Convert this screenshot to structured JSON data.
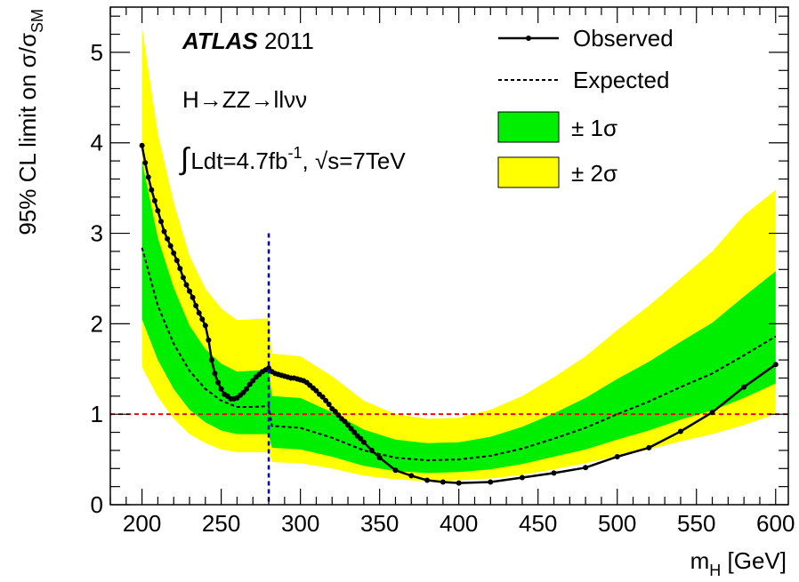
{
  "chart_data": {
    "type": "line",
    "xlabel": {
      "main": "m",
      "sub": "H",
      "rest": " [GeV]"
    },
    "ylabel": {
      "main": "95% CL limit on σ/σ",
      "sub": "SM"
    },
    "xlim": [
      180,
      608
    ],
    "ylim": [
      0,
      5.5
    ],
    "xticks": [
      200,
      250,
      300,
      350,
      400,
      450,
      500,
      550,
      600
    ],
    "yticks": [
      0,
      1,
      2,
      3,
      4,
      5
    ],
    "annotations": {
      "experiment": "ATLAS",
      "year": " 2011",
      "process": "H→ZZ→llνν",
      "lumi_integral": "∫",
      "lumi_a": "Ldt=4.7fb",
      "lumi_exp": "-1",
      "lumi_b": ", √s=7TeV"
    },
    "legend": {
      "placement": "top-right",
      "observed": "Observed",
      "expected": "Expected",
      "band1": "± 1σ",
      "band2": "± 2σ"
    },
    "colors": {
      "band1": "#00ee00",
      "band2": "#ffff00",
      "observed": "#000000",
      "expected": "#000000",
      "reference_line": "#ff0000",
      "transition_line": "#0000dd"
    },
    "reference_line_y": 1.0,
    "transition_line_x": 280,
    "series": [
      {
        "name": "Observed",
        "x": [
          200,
          202,
          204,
          206,
          208,
          210,
          212,
          214,
          216,
          218,
          220,
          222,
          224,
          226,
          228,
          230,
          232,
          234,
          236,
          238,
          240,
          242,
          244,
          246,
          248,
          250,
          252,
          254,
          256,
          258,
          260,
          262,
          264,
          266,
          268,
          270,
          272,
          274,
          276,
          278,
          280,
          282,
          284,
          286,
          288,
          290,
          292,
          294,
          296,
          298,
          300,
          302,
          304,
          306,
          308,
          310,
          312,
          314,
          316,
          318,
          320,
          322,
          324,
          326,
          328,
          330,
          332,
          334,
          336,
          338,
          340,
          345,
          350,
          360,
          370,
          380,
          390,
          400,
          420,
          440,
          460,
          480,
          500,
          520,
          540,
          560,
          580,
          600
        ],
        "y": [
          3.97,
          3.78,
          3.62,
          3.48,
          3.36,
          3.25,
          3.13,
          3.02,
          2.94,
          2.86,
          2.78,
          2.7,
          2.61,
          2.51,
          2.43,
          2.36,
          2.29,
          2.2,
          2.12,
          2.05,
          1.98,
          1.82,
          1.6,
          1.45,
          1.35,
          1.28,
          1.22,
          1.2,
          1.17,
          1.17,
          1.18,
          1.21,
          1.24,
          1.28,
          1.33,
          1.37,
          1.41,
          1.44,
          1.47,
          1.49,
          1.51,
          1.47,
          1.45,
          1.44,
          1.43,
          1.42,
          1.41,
          1.4,
          1.4,
          1.39,
          1.38,
          1.37,
          1.35,
          1.32,
          1.29,
          1.26,
          1.22,
          1.19,
          1.15,
          1.11,
          1.06,
          1.03,
          0.99,
          0.95,
          0.92,
          0.88,
          0.84,
          0.8,
          0.76,
          0.73,
          0.69,
          0.6,
          0.52,
          0.38,
          0.32,
          0.27,
          0.25,
          0.24,
          0.25,
          0.3,
          0.35,
          0.41,
          0.53,
          0.63,
          0.81,
          1.02,
          1.3,
          1.55
        ]
      },
      {
        "name": "Expected",
        "x": [
          200,
          210,
          220,
          230,
          240,
          250,
          260,
          270,
          280,
          282,
          300,
          320,
          340,
          360,
          380,
          400,
          420,
          440,
          460,
          480,
          500,
          520,
          540,
          560,
          580,
          600
        ],
        "y": [
          2.84,
          2.2,
          1.78,
          1.48,
          1.28,
          1.15,
          1.08,
          1.08,
          1.09,
          0.87,
          0.85,
          0.74,
          0.6,
          0.52,
          0.49,
          0.5,
          0.54,
          0.62,
          0.73,
          0.85,
          1.0,
          1.14,
          1.3,
          1.45,
          1.65,
          1.86
        ]
      },
      {
        "name": "± 1σ",
        "x": [
          200,
          210,
          220,
          230,
          240,
          250,
          260,
          270,
          280,
          282,
          300,
          320,
          340,
          360,
          380,
          400,
          420,
          440,
          460,
          480,
          500,
          520,
          540,
          560,
          580,
          600
        ],
        "lower": [
          2.05,
          1.6,
          1.28,
          1.05,
          0.91,
          0.82,
          0.78,
          0.78,
          0.78,
          0.63,
          0.61,
          0.53,
          0.43,
          0.37,
          0.35,
          0.36,
          0.39,
          0.45,
          0.53,
          0.61,
          0.72,
          0.82,
          0.94,
          1.04,
          1.18,
          1.34
        ],
        "upper": [
          3.8,
          2.95,
          2.4,
          1.98,
          1.72,
          1.56,
          1.47,
          1.48,
          1.49,
          1.2,
          1.18,
          1.02,
          0.83,
          0.72,
          0.68,
          0.69,
          0.75,
          0.86,
          1.01,
          1.18,
          1.39,
          1.58,
          1.8,
          2.01,
          2.3,
          2.58
        ]
      },
      {
        "name": "± 2σ",
        "x": [
          200,
          210,
          220,
          230,
          240,
          250,
          260,
          270,
          280,
          282,
          300,
          320,
          340,
          360,
          380,
          400,
          420,
          440,
          460,
          480,
          500,
          520,
          540,
          560,
          580,
          600
        ],
        "lower": [
          1.52,
          1.19,
          0.95,
          0.78,
          0.68,
          0.61,
          0.58,
          0.58,
          0.58,
          0.47,
          0.46,
          0.4,
          0.32,
          0.28,
          0.26,
          0.27,
          0.29,
          0.33,
          0.39,
          0.46,
          0.54,
          0.61,
          0.7,
          0.78,
          0.88,
          1.0
        ],
        "upper": [
          5.28,
          4.1,
          3.34,
          2.75,
          2.39,
          2.17,
          2.04,
          2.05,
          2.06,
          1.67,
          1.64,
          1.42,
          1.15,
          1.0,
          0.95,
          0.96,
          1.05,
          1.2,
          1.41,
          1.64,
          1.93,
          2.2,
          2.5,
          2.8,
          3.2,
          3.48
        ]
      }
    ]
  }
}
